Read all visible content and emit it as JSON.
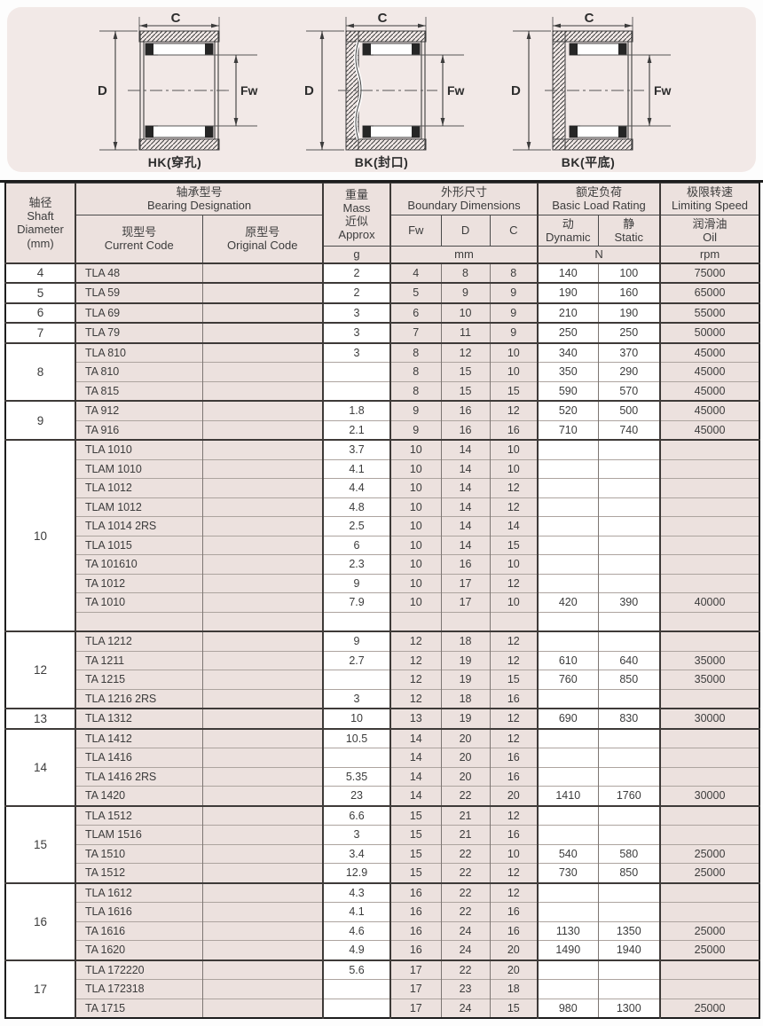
{
  "colors": {
    "panel_bg": "#F2E9E7",
    "cell_pink": "#ECE1DE",
    "line_dark": "#3e3a38",
    "line_light": "#ada49f"
  },
  "diagrams": {
    "items": [
      {
        "caption": "HK(穿孔)",
        "dim_c": "C",
        "dim_d": "D",
        "dim_fw": "Fw"
      },
      {
        "caption": "BK(封口)",
        "dim_c": "C",
        "dim_d": "D",
        "dim_fw": "Fw"
      },
      {
        "caption": "BK(平底)",
        "dim_c": "C",
        "dim_d": "D",
        "dim_fw": "Fw"
      }
    ]
  },
  "table": {
    "header": {
      "shaft_diameter_lines": [
        "轴径",
        "Shaft",
        "Diameter",
        "(mm)"
      ],
      "designation_lines": [
        "轴承型号",
        "Bearing Designation"
      ],
      "current_code_lines": [
        "现型号",
        "Current Code"
      ],
      "original_code_lines": [
        "原型号",
        "Original Code"
      ],
      "mass_lines": [
        "重量",
        "Mass",
        "近似",
        "Approx"
      ],
      "mass_unit": "g",
      "boundary_lines": [
        "外形尺寸",
        "Boundary Dimensions"
      ],
      "col_fw": "Fw",
      "col_d": "D",
      "col_c": "C",
      "dim_unit": "mm",
      "load_lines": [
        "额定负荷",
        "Basic Load Rating"
      ],
      "dynamic_lines": [
        "动",
        "Dynamic"
      ],
      "static_lines": [
        "静",
        "Static"
      ],
      "load_unit": "N",
      "speed_lines": [
        "极限转速",
        "Limiting Speed"
      ],
      "oil_lines": [
        "润滑油",
        "Oil"
      ],
      "speed_unit": "rpm"
    },
    "groups": [
      {
        "diameter": "4",
        "rows": [
          [
            "TLA 48",
            "",
            "2",
            "4",
            "8",
            "8",
            "140",
            "100",
            "75000"
          ]
        ]
      },
      {
        "diameter": "5",
        "rows": [
          [
            "TLA 59",
            "",
            "2",
            "5",
            "9",
            "9",
            "190",
            "160",
            "65000"
          ]
        ]
      },
      {
        "diameter": "6",
        "rows": [
          [
            "TLA 69",
            "",
            "3",
            "6",
            "10",
            "9",
            "210",
            "190",
            "55000"
          ]
        ]
      },
      {
        "diameter": "7",
        "rows": [
          [
            "TLA 79",
            "",
            "3",
            "7",
            "11",
            "9",
            "250",
            "250",
            "50000"
          ]
        ]
      },
      {
        "diameter": "8",
        "rows": [
          [
            "TLA 810",
            "",
            "3",
            "8",
            "12",
            "10",
            "340",
            "370",
            "45000"
          ],
          [
            "TA 810",
            "",
            "",
            "8",
            "15",
            "10",
            "350",
            "290",
            "45000"
          ],
          [
            "TA 815",
            "",
            "",
            "8",
            "15",
            "15",
            "590",
            "570",
            "45000"
          ]
        ]
      },
      {
        "diameter": "9",
        "rows": [
          [
            "TA 912",
            "",
            "1.8",
            "9",
            "16",
            "12",
            "520",
            "500",
            "45000"
          ],
          [
            "TA 916",
            "",
            "2.1",
            "9",
            "16",
            "16",
            "710",
            "740",
            "45000"
          ]
        ]
      },
      {
        "diameter": "10",
        "rows": [
          [
            "TLA 1010",
            "",
            "3.7",
            "10",
            "14",
            "10",
            "",
            "",
            ""
          ],
          [
            "TLAM 1010",
            "",
            "4.1",
            "10",
            "14",
            "10",
            "",
            "",
            ""
          ],
          [
            "TLA 1012",
            "",
            "4.4",
            "10",
            "14",
            "12",
            "",
            "",
            ""
          ],
          [
            "TLAM 1012",
            "",
            "4.8",
            "10",
            "14",
            "12",
            "",
            "",
            ""
          ],
          [
            "TLA 1014 2RS",
            "",
            "2.5",
            "10",
            "14",
            "14",
            "",
            "",
            ""
          ],
          [
            "TLA 1015",
            "",
            "6",
            "10",
            "14",
            "15",
            "",
            "",
            ""
          ],
          [
            "TA 101610",
            "",
            "2.3",
            "10",
            "16",
            "10",
            "",
            "",
            ""
          ],
          [
            "TA 1012",
            "",
            "9",
            "10",
            "17",
            "12",
            "",
            "",
            ""
          ],
          [
            "TA 1010",
            "",
            "7.9",
            "10",
            "17",
            "10",
            "420",
            "390",
            "40000"
          ],
          [
            "",
            "",
            "",
            "",
            "",
            "",
            "",
            "",
            ""
          ]
        ]
      },
      {
        "diameter": "12",
        "rows": [
          [
            "TLA 1212",
            "",
            "9",
            "12",
            "18",
            "12",
            "",
            "",
            ""
          ],
          [
            "TA 1211",
            "",
            "2.7",
            "12",
            "19",
            "12",
            "610",
            "640",
            "35000"
          ],
          [
            "TA 1215",
            "",
            "",
            "12",
            "19",
            "15",
            "760",
            "850",
            "35000"
          ],
          [
            "TLA 1216 2RS",
            "",
            "3",
            "12",
            "18",
            "16",
            "",
            "",
            ""
          ]
        ]
      },
      {
        "diameter": "13",
        "rows": [
          [
            "TLA 1312",
            "",
            "10",
            "13",
            "19",
            "12",
            "690",
            "830",
            "30000"
          ]
        ]
      },
      {
        "diameter": "14",
        "rows": [
          [
            "TLA 1412",
            "",
            "10.5",
            "14",
            "20",
            "12",
            "",
            "",
            ""
          ],
          [
            "TLA 1416",
            "",
            "",
            "14",
            "20",
            "16",
            "",
            "",
            ""
          ],
          [
            "TLA 1416 2RS",
            "",
            "5.35",
            "14",
            "20",
            "16",
            "",
            "",
            ""
          ],
          [
            "TA 1420",
            "",
            "23",
            "14",
            "22",
            "20",
            "1410",
            "1760",
            "30000"
          ]
        ]
      },
      {
        "diameter": "15",
        "rows": [
          [
            "TLA 1512",
            "",
            "6.6",
            "15",
            "21",
            "12",
            "",
            "",
            ""
          ],
          [
            "TLAM 1516",
            "",
            "3",
            "15",
            "21",
            "16",
            "",
            "",
            ""
          ],
          [
            "TA 1510",
            "",
            "3.4",
            "15",
            "22",
            "10",
            "540",
            "580",
            "25000"
          ],
          [
            "TA 1512",
            "",
            "12.9",
            "15",
            "22",
            "12",
            "730",
            "850",
            "25000"
          ]
        ]
      },
      {
        "diameter": "16",
        "rows": [
          [
            "TLA 1612",
            "",
            "4.3",
            "16",
            "22",
            "12",
            "",
            "",
            ""
          ],
          [
            "TLA 1616",
            "",
            "4.1",
            "16",
            "22",
            "16",
            "",
            "",
            ""
          ],
          [
            "TA 1616",
            "",
            "4.6",
            "16",
            "24",
            "16",
            "1130",
            "1350",
            "25000"
          ],
          [
            "TA 1620",
            "",
            "4.9",
            "16",
            "24",
            "20",
            "1490",
            "1940",
            "25000"
          ]
        ]
      },
      {
        "diameter": "17",
        "rows": [
          [
            "TLA 172220",
            "",
            "5.6",
            "17",
            "22",
            "20",
            "",
            "",
            ""
          ],
          [
            "TLA 172318",
            "",
            "",
            "17",
            "23",
            "18",
            "",
            "",
            ""
          ],
          [
            "TA 1715",
            "",
            "",
            "17",
            "24",
            "15",
            "980",
            "1300",
            "25000"
          ]
        ]
      }
    ]
  }
}
